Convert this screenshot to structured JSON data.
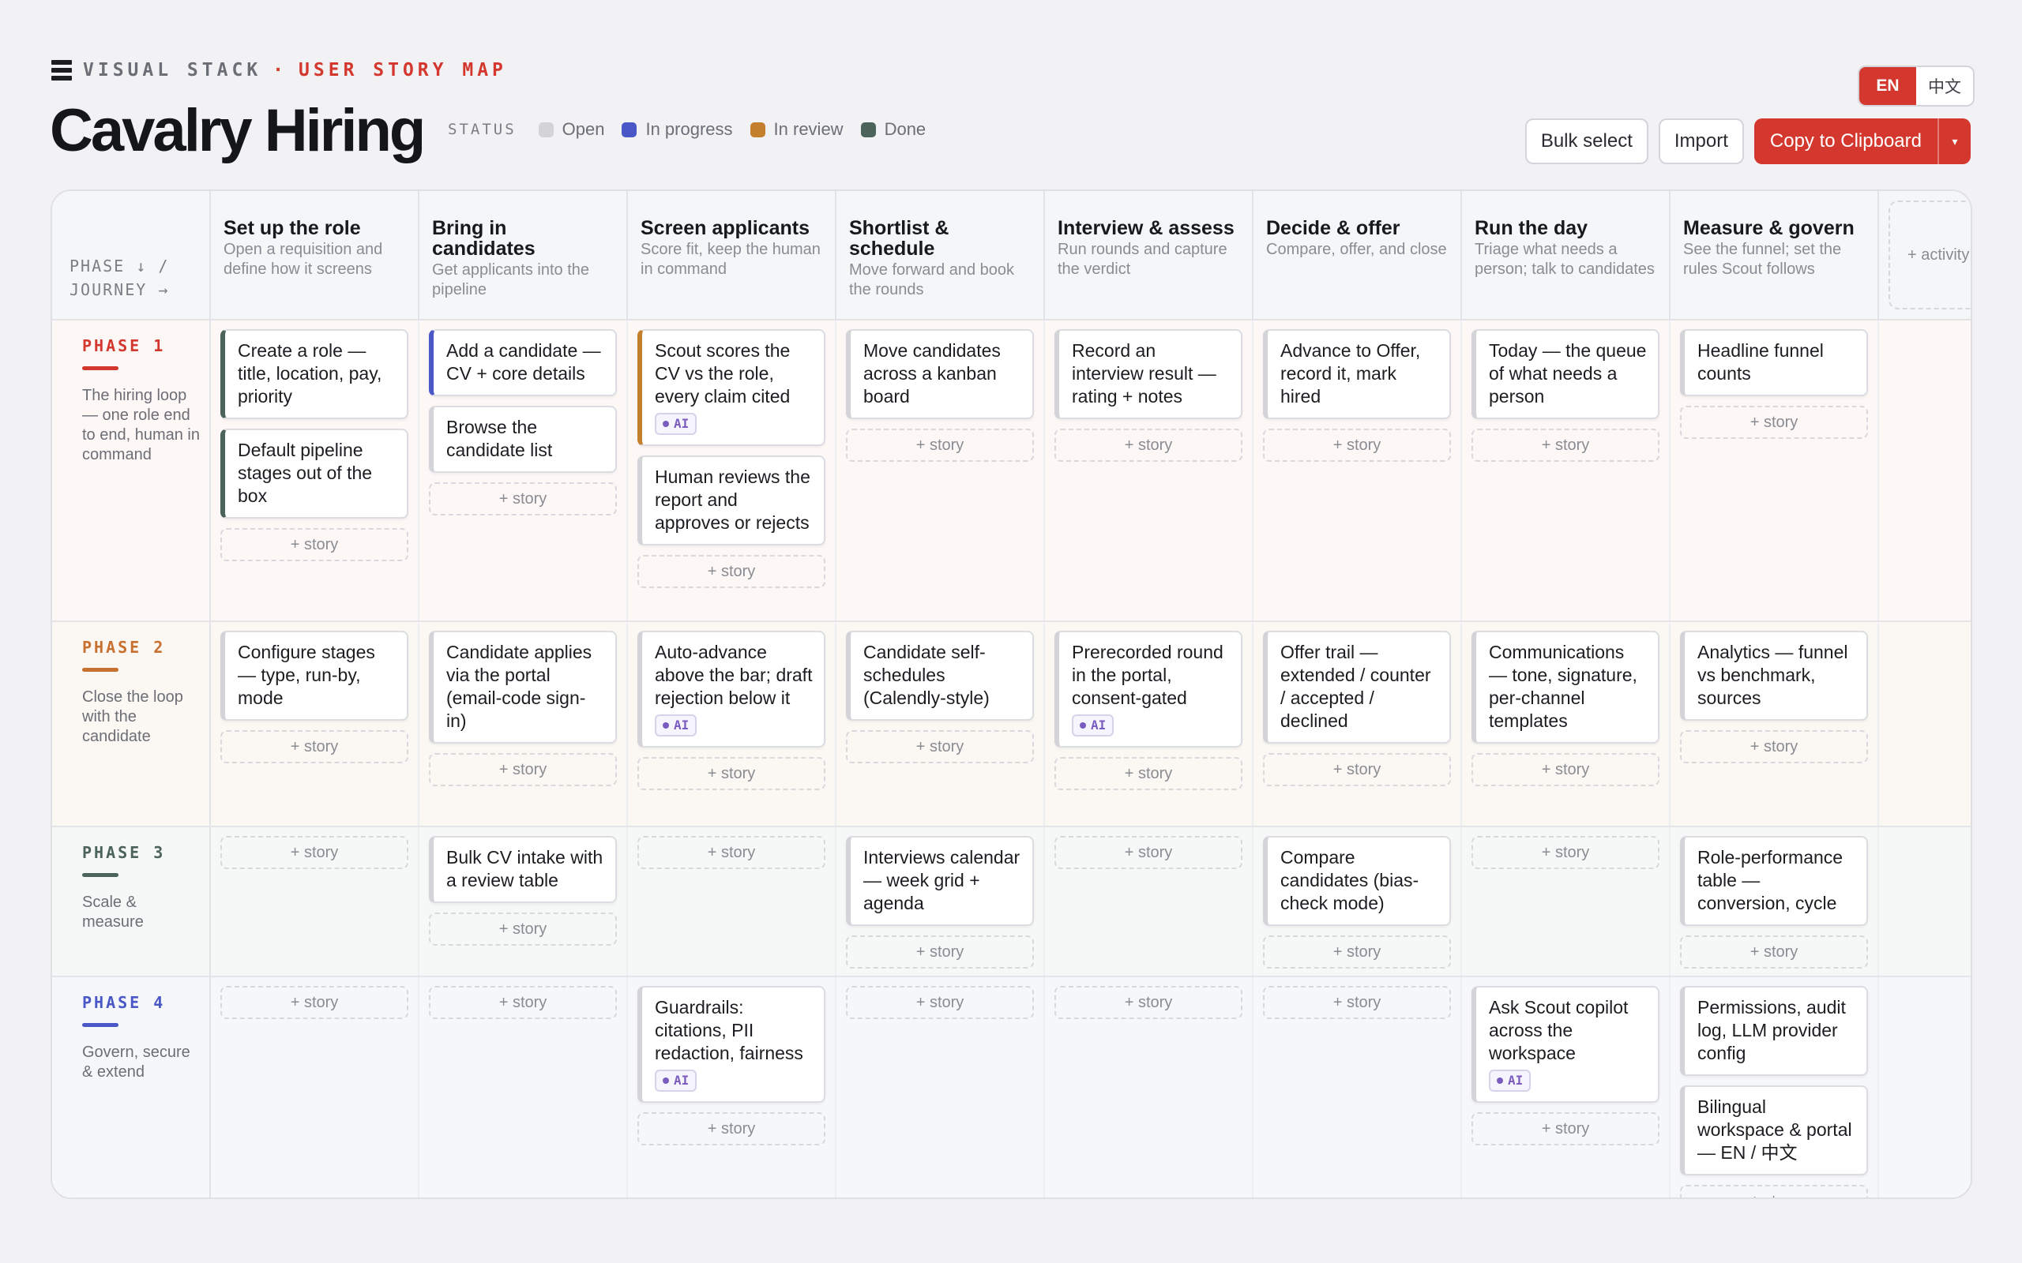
{
  "header": {
    "brand_visual": "VISUAL STACK",
    "brand_sep": "·",
    "brand_map": "USER STORY MAP",
    "title": "Cavalry Hiring",
    "status_label": "STATUS",
    "legend": [
      {
        "label": "Open",
        "color": "#d3d3d8"
      },
      {
        "label": "In progress",
        "color": "#4a57c7"
      },
      {
        "label": "In review",
        "color": "#c47f2d"
      },
      {
        "label": "Done",
        "color": "#4b6359"
      }
    ],
    "lang_en": "EN",
    "lang_zh": "中文",
    "bulk_select": "Bulk select",
    "import": "Import",
    "copy": "Copy to Clipboard",
    "copy_caret": "▾"
  },
  "board": {
    "axis_phase": "PHASE ↓ /",
    "axis_journey": "JOURNEY →",
    "add_activity": "+ activity",
    "add_story": "+ story",
    "activities": [
      {
        "title": "Set up the role",
        "desc": "Open a requisition and define how it screens"
      },
      {
        "title": "Bring in candidates",
        "desc": "Get applicants into the pipeline"
      },
      {
        "title": "Screen applicants",
        "desc": "Score fit, keep the human in command"
      },
      {
        "title": "Shortlist & schedule",
        "desc": "Move forward and book the rounds"
      },
      {
        "title": "Interview & assess",
        "desc": "Run rounds and capture the verdict"
      },
      {
        "title": "Decide & offer",
        "desc": "Compare, offer, and close"
      },
      {
        "title": "Run the day",
        "desc": "Triage what needs a person; talk to candidates"
      },
      {
        "title": "Measure & govern",
        "desc": "See the funnel; set the rules Scout follows"
      }
    ],
    "phases": [
      {
        "name": "PHASE 1",
        "color": "#d3372e",
        "bg": "#fdf7f6",
        "desc": "The hiring loop — one role end to end, human in command",
        "cells": [
          [
            {
              "text": "Create a role — title, location, pay, priority",
              "status": "done"
            },
            {
              "text": "Default pipeline stages out of the box",
              "status": "done"
            }
          ],
          [
            {
              "text": "Add a candidate — CV + core details",
              "status": "progress"
            },
            {
              "text": "Browse the candidate list",
              "status": "open"
            }
          ],
          [
            {
              "text": "Scout scores the CV vs the role, every claim cited",
              "status": "review",
              "ai": "AI"
            },
            {
              "text": "Human reviews the report and approves or rejects",
              "status": "open"
            }
          ],
          [
            {
              "text": "Move candidates across a kanban board",
              "status": "open"
            }
          ],
          [
            {
              "text": "Record an interview result — rating + notes",
              "status": "open"
            }
          ],
          [
            {
              "text": "Advance to Offer, record it, mark hired",
              "status": "open"
            }
          ],
          [
            {
              "text": "Today — the queue of what needs a person",
              "status": "open"
            }
          ],
          [
            {
              "text": "Headline funnel counts",
              "status": "open"
            }
          ]
        ]
      },
      {
        "name": "PHASE 2",
        "color": "#c8702f",
        "bg": "#fbf8f3",
        "desc": "Close the loop with the candidate",
        "cells": [
          [
            {
              "text": "Configure stages — type, run-by, mode",
              "status": "open"
            }
          ],
          [
            {
              "text": "Candidate applies via the portal (email-code sign-in)",
              "status": "open"
            }
          ],
          [
            {
              "text": "Auto-advance above the bar; draft rejection below it",
              "status": "open",
              "ai": "AI"
            }
          ],
          [
            {
              "text": "Candidate self-schedules (Calendly-style)",
              "status": "open"
            }
          ],
          [
            {
              "text": "Prerecorded round in the portal, consent-gated",
              "status": "open",
              "ai": "AI"
            }
          ],
          [
            {
              "text": "Offer trail — extended / counter / accepted / declined",
              "status": "open"
            }
          ],
          [
            {
              "text": "Communications — tone, signature, per-channel templates",
              "status": "open"
            }
          ],
          [
            {
              "text": "Analytics — funnel vs benchmark, sources",
              "status": "open"
            }
          ]
        ]
      },
      {
        "name": "PHASE 3",
        "color": "#4b6359",
        "bg": "#f6f8f7",
        "desc": "Scale & measure",
        "cells": [
          [],
          [
            {
              "text": "Bulk CV intake with a review table",
              "status": "open"
            }
          ],
          [],
          [
            {
              "text": "Interviews calendar — week grid + agenda",
              "status": "open"
            }
          ],
          [],
          [
            {
              "text": "Compare candidates (bias-check mode)",
              "status": "open"
            }
          ],
          [],
          [
            {
              "text": "Role-performance table — conversion, cycle",
              "status": "open"
            }
          ]
        ]
      },
      {
        "name": "PHASE 4",
        "color": "#4a57c7",
        "bg": "#f6f7fa",
        "desc": "Govern, secure & extend",
        "cells": [
          [],
          [],
          [
            {
              "text": "Guardrails: citations, PII redaction, fairness",
              "status": "open",
              "ai": "AI"
            }
          ],
          [],
          [],
          [],
          [
            {
              "text": "Ask Scout copilot across the workspace",
              "status": "open",
              "ai": "AI"
            }
          ],
          [
            {
              "text": "Permissions, audit log, LLM provider config",
              "status": "open"
            },
            {
              "text": "Bilingual workspace & portal — EN / 中文",
              "status": "open"
            }
          ]
        ]
      }
    ]
  }
}
